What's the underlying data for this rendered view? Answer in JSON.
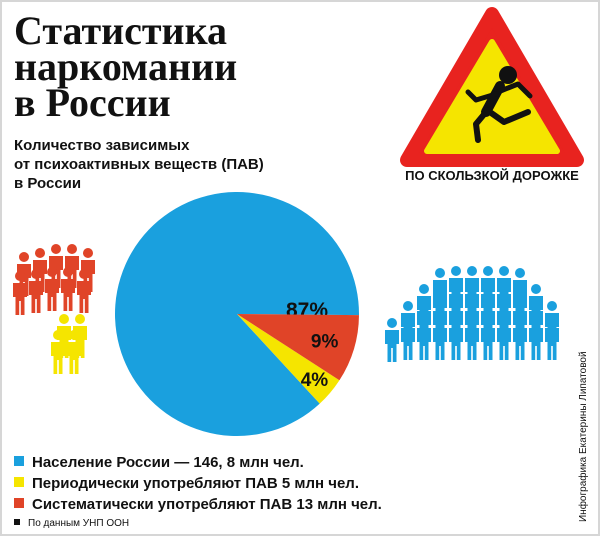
{
  "header": {
    "title_lines": [
      "Статистика",
      "наркомании",
      "в России"
    ],
    "subtitle_lines": [
      "Количество зависимых",
      "от психоактивных веществ (ПАВ)",
      "в России"
    ]
  },
  "sign": {
    "caption": "ПО СКОЛЬЗКОЙ ДОРОЖКЕ",
    "colors": {
      "border": "#e8231f",
      "fill": "#f5e500"
    }
  },
  "chart_data": {
    "type": "pie",
    "slices": [
      {
        "label": "Население России — 146, 8 млн чел.",
        "value": 87,
        "value_label": "87%",
        "color": "#1aa0de"
      },
      {
        "label": "Периодически употребляют ПАВ 5 млн чел.",
        "value": 4,
        "value_label": "4%",
        "color": "#f5e500"
      },
      {
        "label": "Систематически употребляют ПАВ 13 млн чел.",
        "value": 9,
        "value_label": "9%",
        "color": "#e04428"
      }
    ]
  },
  "legend": [
    {
      "text": "Население России — 146, 8 млн чел.",
      "color": "#1aa0de"
    },
    {
      "text": "Периодически употребляют ПАВ 5 млн чел.",
      "color": "#f5e500"
    },
    {
      "text": "Систематически употребляют ПАВ 13 млн чел.",
      "color": "#e04428"
    }
  ],
  "footer": {
    "source": "По данным УНП ООН",
    "credit": "Инфографика Екатерины Липатовой"
  },
  "icons": [
    "warning-sign-icon",
    "person-icon"
  ],
  "colors": {
    "blue": "#1aa0de",
    "yellow": "#f5e500",
    "red": "#e04428",
    "text": "#111111"
  }
}
